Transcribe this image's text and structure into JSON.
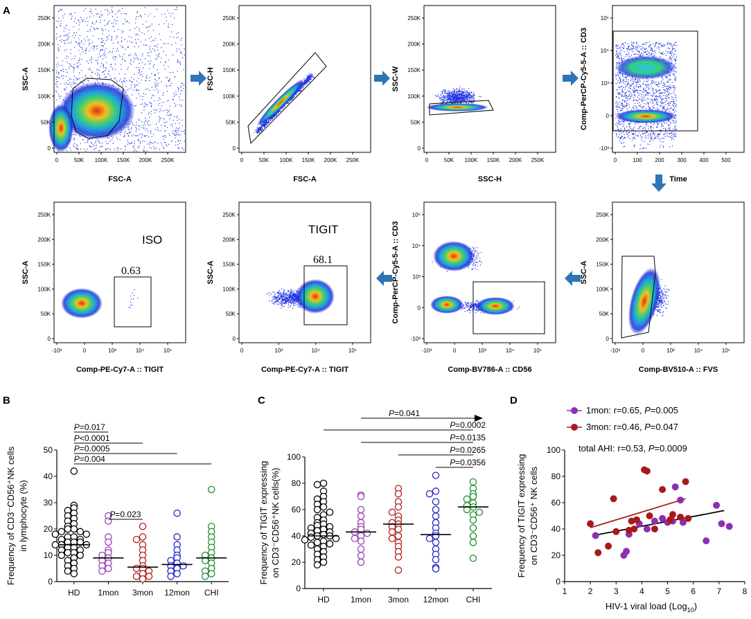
{
  "panelA": {
    "letter": "A",
    "plots": [
      {
        "xlabel": "FSC-A",
        "ylabel": "SSC-A",
        "xticks": [
          "0",
          "50K",
          "100K",
          "150K",
          "200K",
          "250K"
        ],
        "yticks": [
          "0",
          "50K",
          "100K",
          "150K",
          "200K",
          "250K"
        ]
      },
      {
        "xlabel": "FSC-A",
        "ylabel": "FSC-H",
        "xticks": [
          "0",
          "50K",
          "100K",
          "150K",
          "200K",
          "250K"
        ],
        "yticks": [
          "0",
          "50K",
          "100K",
          "150K",
          "200K",
          "250K"
        ]
      },
      {
        "xlabel": "SSC-H",
        "ylabel": "SSC-W",
        "xticks": [
          "0",
          "50K",
          "100K",
          "150K",
          "200K",
          "250K"
        ],
        "yticks": [
          "0",
          "50K",
          "100K",
          "150K",
          "200K",
          "250K"
        ]
      },
      {
        "xlabel": "Time",
        "ylabel": "Comp-PerCP-Cy5-5-A :: CD3",
        "xticks": [
          "0",
          "100",
          "200",
          "300",
          "400",
          "500"
        ],
        "yticks": [
          "-10³",
          "0",
          "10³",
          "10⁴",
          "10⁵"
        ]
      },
      {
        "xlabel": "Comp-PE-Cy7-A :: TIGIT",
        "ylabel": "SSC-A",
        "xticks": [
          "-10³",
          "0",
          "10³",
          "10⁴",
          "10⁵"
        ],
        "yticks": [
          "0",
          "50K",
          "100K",
          "150K",
          "200K",
          "250K"
        ],
        "title": "ISO",
        "gate_value": "0.63"
      },
      {
        "xlabel": "Comp-PE-Cy7-A :: TIGIT",
        "ylabel": "SSC-A",
        "xticks": [
          "0",
          "10³",
          "10⁴",
          "10⁵"
        ],
        "yticks": [
          "0",
          "50K",
          "100K",
          "150K",
          "200K",
          "250K"
        ],
        "title": "TIGIT",
        "gate_value": "68.1"
      },
      {
        "xlabel": "Comp-BV786-A :: CD56",
        "ylabel": "Comp-PerCP-Cy5-5-A :: CD3",
        "xticks": [
          "-10³",
          "0",
          "10³",
          "10⁴",
          "10⁵"
        ],
        "yticks": [
          "-10³",
          "0",
          "10³",
          "10⁴",
          "10⁵"
        ]
      },
      {
        "xlabel": "Comp-BV510-A :: FVS",
        "ylabel": "SSC-A",
        "xticks": [
          "-10³",
          "0",
          "10³",
          "10⁴",
          "10⁵"
        ],
        "yticks": [
          "0",
          "50K",
          "100K",
          "150K",
          "200K",
          "250K"
        ]
      }
    ]
  },
  "chart_data": [
    {
      "type": "scatter",
      "panel": "B",
      "ylabel_line1": "Frequency of CD3⁻CD56⁺NK cells",
      "ylabel_line2": "in lymphocyte (%)",
      "ylim": [
        0,
        50
      ],
      "yticks": [
        "0",
        "10",
        "20",
        "30",
        "40",
        "50"
      ],
      "categories": [
        "HD",
        "1mon",
        "3mon",
        "12mon",
        "CHI"
      ],
      "colors": [
        "#000000",
        "#9b3fb3",
        "#b01c1c",
        "#2323c8",
        "#1c8f2c"
      ],
      "medians": [
        14,
        9,
        5.5,
        6.5,
        9
      ],
      "series": [
        {
          "name": "HD",
          "values": [
            42,
            29,
            28,
            27,
            26,
            25,
            24,
            23,
            22,
            21,
            20,
            20,
            19,
            19,
            18,
            18,
            17,
            17,
            16,
            16,
            15,
            15,
            15,
            14,
            14,
            14,
            13,
            13,
            12,
            12,
            11,
            11,
            10,
            10,
            9,
            8,
            7,
            6,
            5,
            4,
            3
          ]
        },
        {
          "name": "1mon",
          "values": [
            25,
            23,
            17,
            15,
            12,
            11,
            10,
            9,
            8,
            7,
            6,
            5,
            4
          ]
        },
        {
          "name": "3mon",
          "values": [
            21,
            17,
            16,
            14,
            12,
            10,
            8,
            6,
            5,
            5,
            4,
            3,
            2,
            2,
            1
          ]
        },
        {
          "name": "12mon",
          "values": [
            26,
            17,
            14,
            12,
            10,
            9,
            8,
            7,
            6,
            6,
            5,
            4,
            3,
            2
          ]
        },
        {
          "name": "CHI",
          "values": [
            35,
            21,
            19,
            17,
            15,
            13,
            11,
            10,
            9,
            8,
            7,
            5,
            4,
            3,
            2
          ]
        }
      ],
      "comparisons": [
        {
          "label": "P=0.017"
        },
        {
          "label": "P<0.0001"
        },
        {
          "label": "P=0.0005"
        },
        {
          "label": "P=0.004"
        },
        {
          "label": "P=0.023"
        }
      ]
    },
    {
      "type": "scatter",
      "panel": "C",
      "ylabel_line1": "Frequency of TIGIT expressing",
      "ylabel_line2": "on CD3⁻CD56⁺NK cells(%)",
      "ylim": [
        0,
        100
      ],
      "yticks": [
        "0",
        "20",
        "40",
        "60",
        "80",
        "100"
      ],
      "categories": [
        "HD",
        "1mon",
        "3mon",
        "12mon",
        "CHI"
      ],
      "colors": [
        "#000000",
        "#9b3fb3",
        "#b01c1c",
        "#2323c8",
        "#1c8f2c"
      ],
      "medians": [
        40,
        43,
        49,
        41,
        62
      ],
      "series": [
        {
          "name": "HD",
          "values": [
            80,
            79,
            74,
            70,
            68,
            66,
            64,
            62,
            60,
            58,
            56,
            54,
            52,
            50,
            49,
            48,
            47,
            46,
            45,
            44,
            43,
            42,
            41,
            40,
            40,
            39,
            38,
            37,
            36,
            35,
            34,
            33,
            32,
            30,
            28,
            26,
            24,
            22,
            20,
            18
          ]
        },
        {
          "name": "1mon",
          "values": [
            71,
            70,
            60,
            55,
            50,
            47,
            45,
            43,
            42,
            40,
            38,
            36,
            30,
            25,
            20
          ]
        },
        {
          "name": "3mon",
          "values": [
            76,
            72,
            66,
            62,
            58,
            55,
            52,
            50,
            49,
            47,
            45,
            43,
            40,
            38,
            35,
            32,
            28,
            24,
            14
          ]
        },
        {
          "name": "12mon",
          "values": [
            86,
            74,
            72,
            66,
            60,
            55,
            50,
            46,
            42,
            40,
            38,
            35,
            30,
            26,
            22,
            16,
            15
          ]
        },
        {
          "name": "CHI",
          "values": [
            81,
            76,
            72,
            70,
            68,
            65,
            63,
            62,
            60,
            58,
            56,
            52,
            46,
            40,
            35,
            23
          ]
        }
      ],
      "comparisons": [
        {
          "label": "P=0.041"
        },
        {
          "label": "P=0.0002"
        },
        {
          "label": "P=0.0135"
        },
        {
          "label": "P=0.0265"
        },
        {
          "label": "P=0.0356"
        }
      ]
    },
    {
      "type": "scatter",
      "panel": "D",
      "xlabel": "HIV-1 viral load (Log",
      "xlabel_sub": "10",
      "xlabel_end": ")",
      "ylabel_line1": "Frequency of TIGIT expressing",
      "ylabel_line2": "on CD3⁻CD56⁺ NK cells",
      "xlim": [
        1,
        8
      ],
      "ylim": [
        0,
        100
      ],
      "xticks": [
        "1",
        "2",
        "3",
        "4",
        "5",
        "6",
        "7",
        "8"
      ],
      "yticks": [
        "0",
        "20",
        "40",
        "60",
        "80",
        "100"
      ],
      "legend": [
        {
          "name": "1mon",
          "stat": "r=0.65, ",
          "p": "P",
          "pval": "=0.005",
          "color": "#8e2fb0"
        },
        {
          "name": "3mon",
          "stat": "r=0.46, ",
          "p": "P",
          "pval": "=0.047",
          "color": "#a81a1a"
        }
      ],
      "total_text": "total  AHI: r=0.53, ",
      "total_p": "P",
      "total_pval": "=0.0009",
      "series": [
        {
          "name": "1mon",
          "x": [
            2.2,
            3.3,
            3.4,
            3.5,
            3.9,
            4.2,
            4.5,
            4.8,
            5.0,
            5.2,
            5.3,
            5.5,
            5.6,
            6.5,
            6.9,
            7.1,
            7.4
          ],
          "y": [
            35,
            20,
            23,
            36,
            44,
            40,
            46,
            48,
            45,
            46,
            72,
            62,
            45,
            31,
            58,
            44,
            42
          ]
        },
        {
          "name": "3mon",
          "x": [
            2.0,
            2.3,
            2.7,
            2.9,
            3.0,
            3.5,
            3.6,
            3.7,
            3.8,
            4.1,
            4.2,
            4.3,
            4.5,
            4.8,
            5.1,
            5.2,
            5.5,
            5.7,
            5.8
          ],
          "y": [
            44,
            22,
            27,
            63,
            38,
            39,
            46,
            40,
            47,
            85,
            84,
            50,
            40,
            70,
            47,
            51,
            49,
            76,
            48
          ]
        }
      ],
      "fits": [
        {
          "name": "1mon",
          "x": [
            2.1,
            7.2
          ],
          "y": [
            35,
            54
          ]
        },
        {
          "name": "3mon",
          "x": [
            2.0,
            5.7
          ],
          "y": [
            41,
            63
          ]
        }
      ]
    }
  ]
}
